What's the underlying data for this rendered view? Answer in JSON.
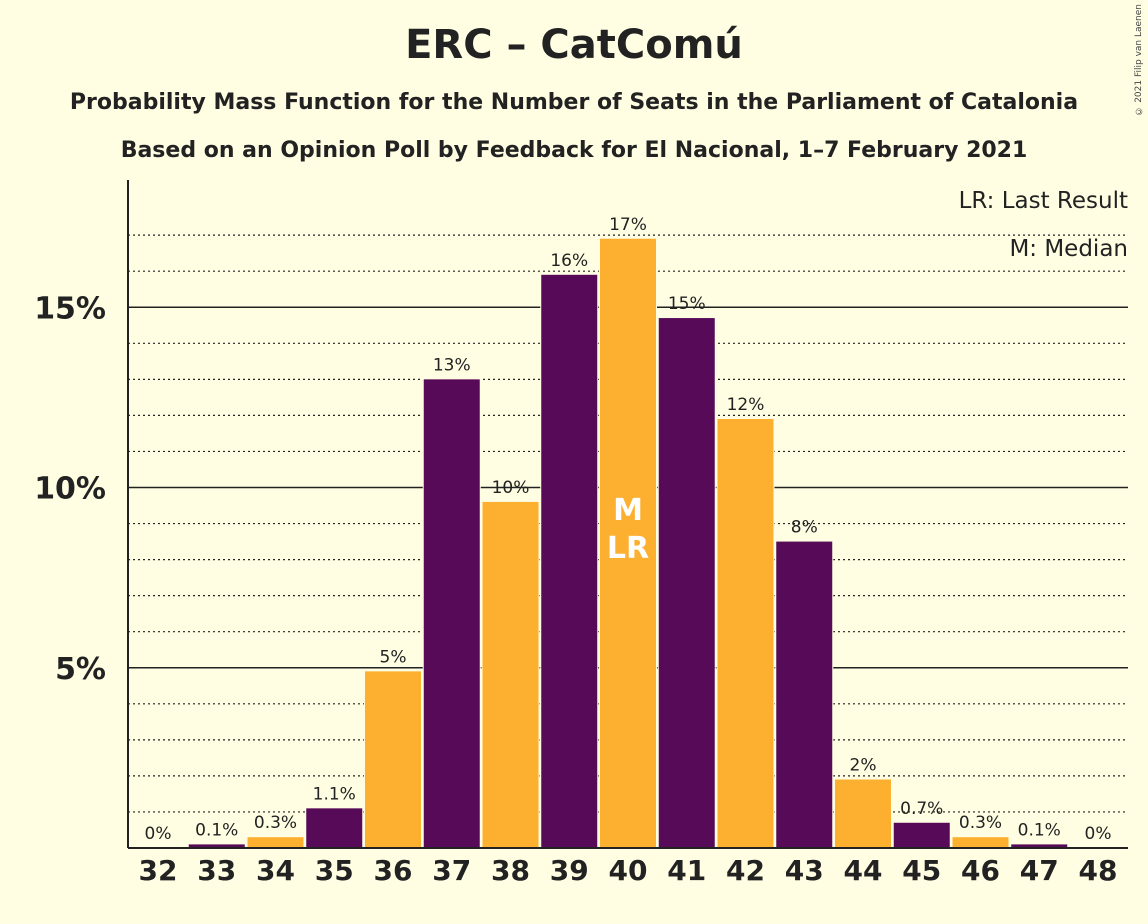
{
  "title": "ERC – CatComú",
  "subtitle1": "Probability Mass Function for the Number of Seats in the Parliament of Catalonia",
  "subtitle2": "Based on an Opinion Poll by Feedback for El Nacional, 1–7 February 2021",
  "copyright": "© 2021 Filip van Laenen",
  "colors": {
    "background": "#FFFEE3",
    "primary": "#560A57",
    "secondary": "#FDB030"
  },
  "legend": {
    "lr": "LR: Last Result",
    "m": "M: Median"
  },
  "chart_data": {
    "type": "bar",
    "categories": [
      "32",
      "33",
      "34",
      "35",
      "36",
      "37",
      "38",
      "39",
      "40",
      "41",
      "42",
      "43",
      "44",
      "45",
      "46",
      "47",
      "48"
    ],
    "values": [
      0,
      0.1,
      0.3,
      1.1,
      4.9,
      13.0,
      9.6,
      15.9,
      16.9,
      14.7,
      11.9,
      8.5,
      1.9,
      0.7,
      0.3,
      0.1,
      0
    ],
    "labels": [
      "0%",
      "0.1%",
      "0.3%",
      "1.1%",
      "5%",
      "13%",
      "10%",
      "16%",
      "17%",
      "15%",
      "12%",
      "8%",
      "2%",
      "0.7%",
      "0.3%",
      "0.1%",
      "0%"
    ],
    "bar_colors": [
      "#560A57",
      "#560A57",
      "#FDB030",
      "#560A57",
      "#FDB030",
      "#560A57",
      "#FDB030",
      "#560A57",
      "#FDB030",
      "#560A57",
      "#FDB030",
      "#560A57",
      "#FDB030",
      "#560A57",
      "#FDB030",
      "#560A57",
      "#FDB030"
    ],
    "ylim": [
      0,
      18.5
    ],
    "yticks": [
      5,
      10,
      15
    ],
    "ytick_labels": [
      "5%",
      "10%",
      "15%"
    ],
    "minor_grid": [
      1,
      2,
      3,
      4,
      6,
      7,
      8,
      9,
      11,
      12,
      13,
      14,
      16,
      17
    ],
    "median_seat": "40",
    "last_result_seat": "40",
    "bar_annotation": [
      "M",
      "LR"
    ],
    "xlabel": "",
    "ylabel": ""
  }
}
